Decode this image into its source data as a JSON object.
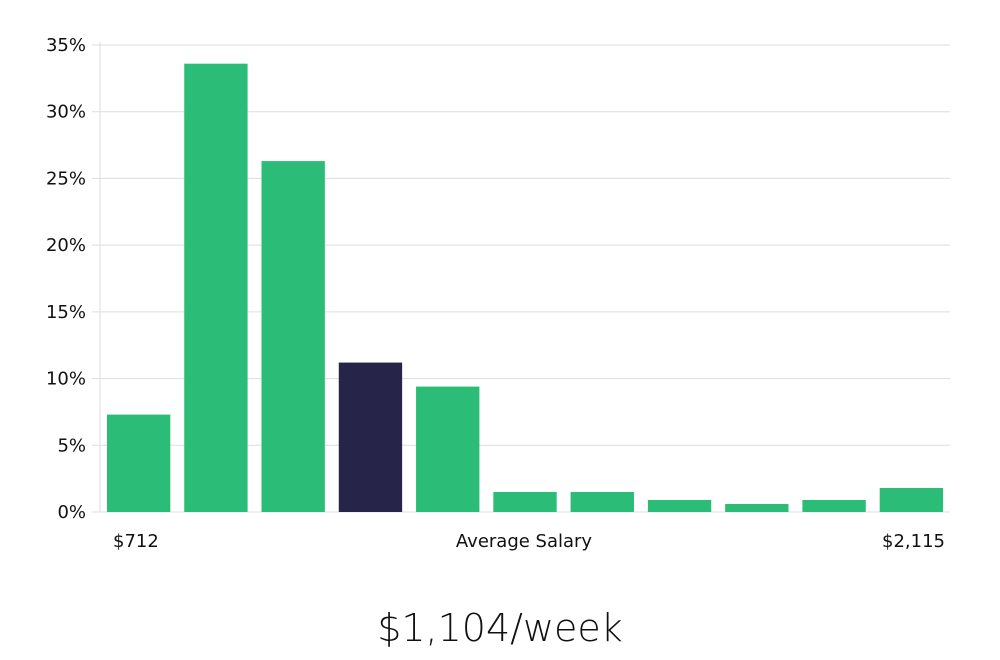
{
  "chart_data": {
    "type": "bar",
    "title": "",
    "xlabel": "Average Salary",
    "ylabel": "",
    "ylim": [
      0,
      35
    ],
    "yticks": [
      "0%",
      "5%",
      "10%",
      "15%",
      "20%",
      "25%",
      "30%",
      "35%"
    ],
    "x_range_labels": {
      "min": "$712",
      "max": "$2,115"
    },
    "values": [
      7.3,
      33.6,
      26.3,
      11.2,
      9.4,
      1.5,
      1.5,
      0.9,
      0.6,
      0.9,
      1.8
    ],
    "highlight_index": 3,
    "grid": true,
    "colors": {
      "bar": "#2bbd77",
      "highlight": "#27244a",
      "grid": "#dddddd"
    }
  },
  "summary": {
    "salary": "$1,104/week"
  }
}
